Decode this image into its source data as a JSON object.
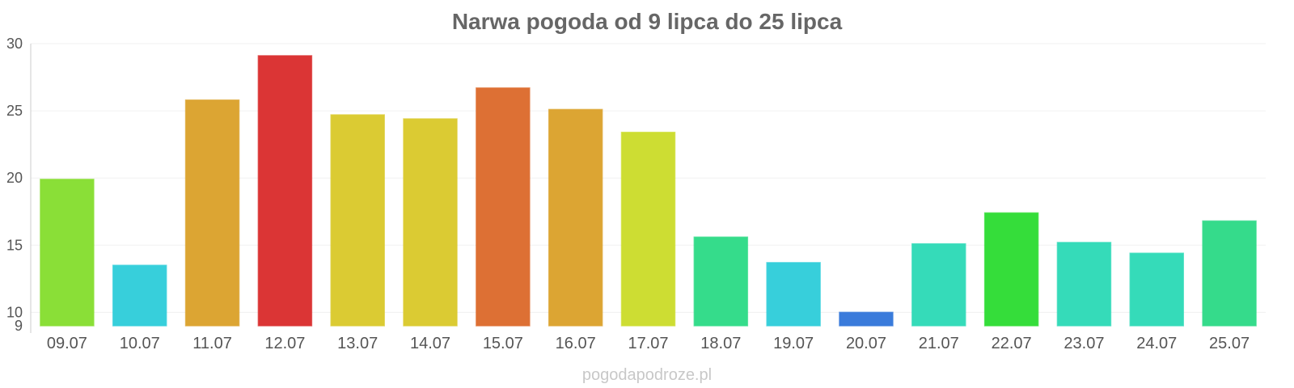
{
  "chart_data": {
    "type": "bar",
    "title": "Narwa pogoda od 9 lipca do 25 lipca",
    "xlabel": "",
    "ylabel": "",
    "ylim": [
      9,
      30
    ],
    "yticks": [
      9,
      10,
      15,
      20,
      25,
      30
    ],
    "grid": true,
    "legend": "none",
    "categories": [
      "09.07",
      "10.07",
      "11.07",
      "12.07",
      "13.07",
      "14.07",
      "15.07",
      "16.07",
      "17.07",
      "18.07",
      "19.07",
      "20.07",
      "21.07",
      "22.07",
      "23.07",
      "24.07",
      "25.07"
    ],
    "values": [
      19.9,
      13.5,
      25.8,
      29.1,
      24.7,
      24.4,
      26.7,
      25.1,
      23.4,
      15.6,
      13.7,
      10.0,
      15.1,
      17.4,
      15.2,
      14.4,
      16.8
    ],
    "colors": [
      "#8adf37",
      "#37cfdb",
      "#dca533",
      "#db3535",
      "#dbcb33",
      "#dbcb33",
      "#dd7034",
      "#dca533",
      "#cddd33",
      "#35dc8b",
      "#37cfdb",
      "#3a7bdb",
      "#35dbb9",
      "#35dd3a",
      "#35dbb9",
      "#35dbb9",
      "#35db8b"
    ]
  },
  "credit": "pogodapodroze.pl"
}
